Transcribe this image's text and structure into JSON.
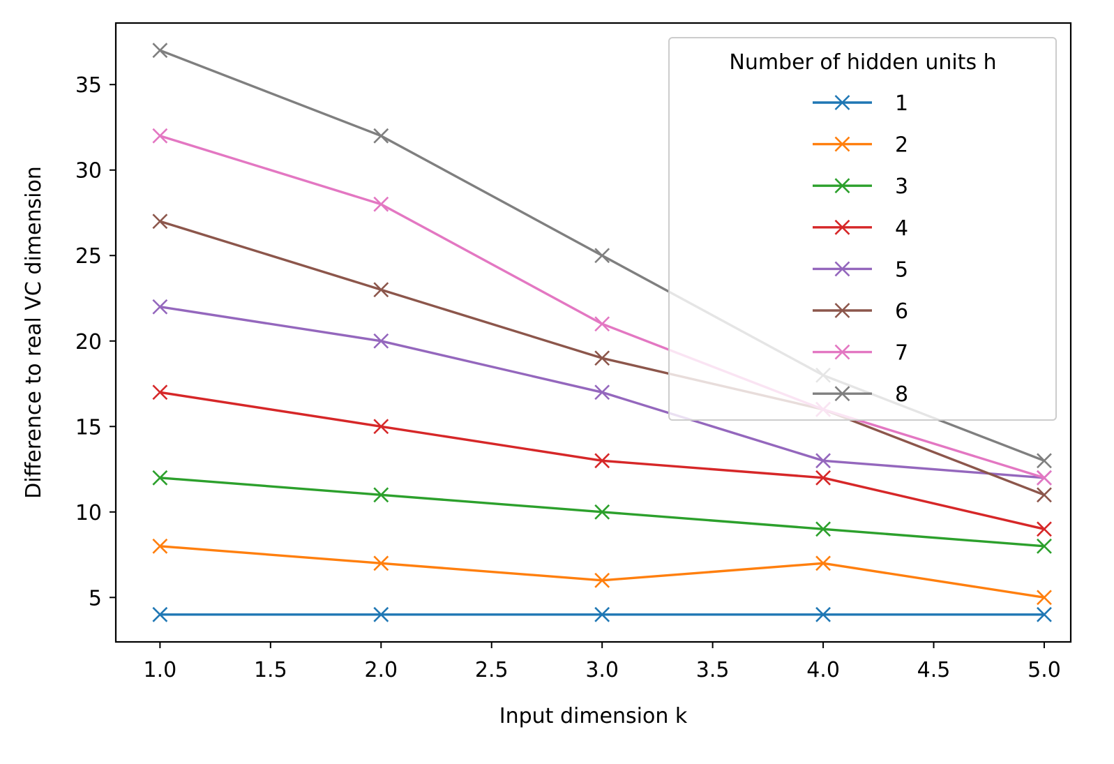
{
  "chart_data": {
    "type": "line",
    "title": "",
    "xlabel": "Input dimension k",
    "ylabel": "Difference to real VC dimension",
    "x": [
      1.0,
      2.0,
      3.0,
      4.0,
      5.0
    ],
    "xlim": [
      0.8,
      5.12
    ],
    "ylim": [
      2.4,
      38.6
    ],
    "xticks": [
      1.0,
      1.5,
      2.0,
      2.5,
      3.0,
      3.5,
      4.0,
      4.5,
      5.0
    ],
    "xtick_labels": [
      "1.0",
      "1.5",
      "2.0",
      "2.5",
      "3.0",
      "3.5",
      "4.0",
      "4.5",
      "5.0"
    ],
    "yticks": [
      5,
      10,
      15,
      20,
      25,
      30,
      35
    ],
    "ytick_labels": [
      "5",
      "10",
      "15",
      "20",
      "25",
      "30",
      "35"
    ],
    "grid": false,
    "marker": "x",
    "legend": {
      "title": "Number of hidden units h",
      "position": "top-right"
    },
    "series": [
      {
        "name": "1",
        "color": "#1f77b4",
        "values": [
          4,
          4,
          4,
          4,
          4
        ]
      },
      {
        "name": "2",
        "color": "#ff7f0e",
        "values": [
          8,
          7,
          6,
          7,
          5
        ]
      },
      {
        "name": "3",
        "color": "#2ca02c",
        "values": [
          12,
          11,
          10,
          9,
          8
        ]
      },
      {
        "name": "4",
        "color": "#d62728",
        "values": [
          17,
          15,
          13,
          12,
          9
        ]
      },
      {
        "name": "5",
        "color": "#9467bd",
        "values": [
          22,
          20,
          17,
          13,
          12
        ]
      },
      {
        "name": "6",
        "color": "#8c564b",
        "values": [
          27,
          23,
          19,
          16,
          11
        ]
      },
      {
        "name": "7",
        "color": "#e377c2",
        "values": [
          32,
          28,
          21,
          16,
          12
        ]
      },
      {
        "name": "8",
        "color": "#7f7f7f",
        "values": [
          37,
          32,
          25,
          18,
          13
        ]
      }
    ]
  }
}
